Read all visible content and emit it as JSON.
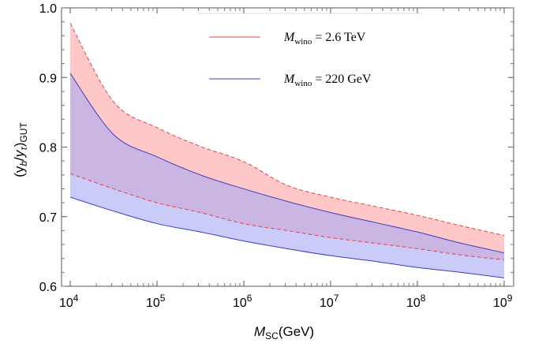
{
  "chart_data": {
    "type": "area",
    "title": "",
    "xlabel": {
      "symbol": "M",
      "sub": "SC",
      "unit": "(GeV)"
    },
    "ylabel": {
      "text": "(y",
      "b": "b",
      "tau": "τ",
      "sub": "GUT"
    },
    "x_scale": "log10",
    "xlim_log10": [
      3.9,
      9.1
    ],
    "ylim": [
      0.6,
      1.0
    ],
    "x_ticks": [
      {
        "base": "10",
        "exp": "4",
        "value": 4
      },
      {
        "base": "10",
        "exp": "5",
        "value": 5
      },
      {
        "base": "10",
        "exp": "6",
        "value": 6
      },
      {
        "base": "10",
        "exp": "7",
        "value": 7
      },
      {
        "base": "10",
        "exp": "8",
        "value": 8
      },
      {
        "base": "10",
        "exp": "9",
        "value": 9
      }
    ],
    "y_ticks": [
      "0.6",
      "0.7",
      "0.8",
      "0.9",
      "1.0"
    ],
    "series": [
      {
        "name": "M_wino = 2.6 TeV",
        "legend_symbol": "M",
        "legend_sub": "wino",
        "legend_value": " = 2.6 TeV",
        "line_color": "#e8414a",
        "fill_color": "#ff9a9a",
        "fill_opacity": 0.55,
        "dashed": true,
        "log10_x": [
          4,
          4.5,
          5,
          5.5,
          6,
          6.5,
          7,
          7.5,
          8,
          8.5,
          9
        ],
        "upper": [
          0.978,
          0.865,
          0.828,
          0.801,
          0.779,
          0.745,
          0.728,
          0.715,
          0.702,
          0.687,
          0.673
        ],
        "lower": [
          0.762,
          0.74,
          0.72,
          0.706,
          0.69,
          0.68,
          0.67,
          0.662,
          0.654,
          0.645,
          0.638
        ]
      },
      {
        "name": "M_wino = 220 GeV",
        "legend_symbol": "M",
        "legend_sub": "wino",
        "legend_value": " = 220 GeV",
        "line_color": "#3b3bc0",
        "fill_color": "#a8a8f5",
        "fill_opacity": 0.6,
        "dashed": false,
        "log10_x": [
          4,
          4.5,
          5,
          5.5,
          6,
          6.5,
          7,
          7.5,
          8,
          8.5,
          9
        ],
        "upper": [
          0.906,
          0.818,
          0.786,
          0.76,
          0.74,
          0.722,
          0.706,
          0.692,
          0.678,
          0.662,
          0.648
        ],
        "lower": [
          0.728,
          0.708,
          0.69,
          0.678,
          0.665,
          0.654,
          0.644,
          0.636,
          0.627,
          0.62,
          0.612
        ]
      }
    ]
  }
}
